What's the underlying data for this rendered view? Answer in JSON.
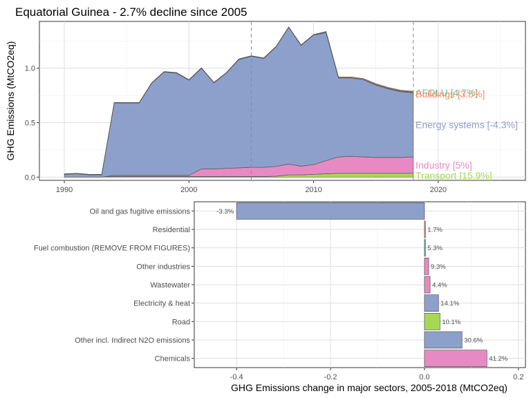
{
  "chart_data": [
    {
      "type": "area",
      "title": "Equatorial Guinea - 2.7% decline since 2005",
      "xlabel": "",
      "ylabel": "GHG Emissions (MtCO2eq)",
      "xlim": [
        1988,
        2027
      ],
      "ylim": [
        -0.03,
        1.43
      ],
      "x_ticks": [
        1990,
        2000,
        2010,
        2020
      ],
      "y_ticks": [
        0.0,
        0.5,
        1.0
      ],
      "y_tick_labels": [
        "0.0",
        "0.5",
        "1.0"
      ],
      "reference_lines_x": [
        2005,
        2018
      ],
      "grid": true,
      "x": [
        1990,
        1991,
        1992,
        1993,
        1994,
        1995,
        1996,
        1997,
        1998,
        1999,
        2000,
        2001,
        2002,
        2003,
        2004,
        2005,
        2006,
        2007,
        2008,
        2009,
        2010,
        2011,
        2012,
        2013,
        2014,
        2015,
        2016,
        2017,
        2018
      ],
      "series": [
        {
          "name": "Transport [15.9%]",
          "color": "#a6d854",
          "values": [
            0.0,
            0.0,
            0.0,
            0.0,
            0.005,
            0.005,
            0.005,
            0.005,
            0.005,
            0.005,
            0.005,
            0.005,
            0.005,
            0.005,
            0.005,
            0.005,
            0.005,
            0.008,
            0.02,
            0.02,
            0.025,
            0.03,
            0.035,
            0.035,
            0.035,
            0.035,
            0.035,
            0.035,
            0.035
          ]
        },
        {
          "name": "Industry [5%]",
          "color": "#e78ac3",
          "values": [
            0.0,
            0.0,
            0.0,
            0.0,
            0.01,
            0.01,
            0.01,
            0.01,
            0.01,
            0.01,
            0.01,
            0.07,
            0.07,
            0.075,
            0.08,
            0.085,
            0.085,
            0.09,
            0.1,
            0.08,
            0.09,
            0.12,
            0.15,
            0.155,
            0.15,
            0.145,
            0.145,
            0.145,
            0.15
          ]
        },
        {
          "name": "Energy systems [-4.3%]",
          "color": "#8da0cb",
          "values": [
            0.025,
            0.03,
            0.02,
            0.02,
            0.665,
            0.665,
            0.665,
            0.845,
            0.95,
            0.94,
            0.875,
            0.925,
            0.79,
            0.875,
            0.995,
            1.02,
            1.0,
            1.1,
            1.255,
            1.11,
            1.19,
            1.175,
            0.725,
            0.72,
            0.71,
            0.665,
            0.63,
            0.605,
            0.59
          ]
        },
        {
          "name": "AFOLU [4.7%]",
          "color": "#66c2a5",
          "values": [
            0.002,
            0.002,
            0.002,
            0.002,
            0.002,
            0.002,
            0.002,
            0.002,
            0.002,
            0.002,
            0.002,
            0.002,
            0.002,
            0.002,
            0.002,
            0.002,
            0.002,
            0.002,
            0.002,
            0.002,
            0.002,
            0.01,
            0.002,
            0.002,
            0.002,
            0.005,
            0.005,
            0.005,
            0.005
          ]
        },
        {
          "name": "Buildings [3.5%]",
          "color": "#fc8d62",
          "values": [
            0.003,
            0.003,
            0.003,
            0.003,
            0.003,
            0.003,
            0.003,
            0.003,
            0.003,
            0.003,
            0.003,
            0.003,
            0.003,
            0.003,
            0.003,
            0.003,
            0.003,
            0.003,
            0.003,
            0.003,
            0.003,
            0.003,
            0.008,
            0.008,
            0.008,
            0.008,
            0.008,
            0.008,
            0.008
          ]
        }
      ],
      "end_labels": [
        {
          "text": "AFOLU [4.7%]",
          "y": 0.775,
          "color": "#66c2a5"
        },
        {
          "text": "Buildings [3.5%]",
          "y": 0.765,
          "color": "#fc8d62"
        },
        {
          "text": "Energy systems [-4.3%]",
          "y": 0.48,
          "color": "#8da0cb"
        },
        {
          "text": "Industry [5%]",
          "y": 0.11,
          "color": "#e78ac3"
        },
        {
          "text": "Transport [15.9%]",
          "y": 0.015,
          "color": "#a6d854"
        }
      ]
    },
    {
      "type": "bar",
      "orientation": "horizontal",
      "xlabel": "GHG Emissions change in major sectors, 2005-2018 (MtCO2eq)",
      "ylabel": "",
      "xlim": [
        -0.49,
        0.215
      ],
      "x_ticks": [
        -0.4,
        -0.2,
        0.0,
        0.2
      ],
      "x_tick_labels": [
        "-0.4",
        "-0.2",
        "0.0",
        "0.2"
      ],
      "grid": true,
      "categories": [
        "Oil and gas fugitive emissions",
        "Residential",
        "Fuel combustion (REMOVE FROM FIGURES)",
        "Other industries",
        "Wastewater",
        "Electricity & heat",
        "Road",
        "Other incl. Indirect N2O emissions",
        "Chemicals"
      ],
      "values": [
        -0.4,
        0.002,
        0.002,
        0.009,
        0.012,
        0.03,
        0.033,
        0.08,
        0.133
      ],
      "labels": [
        "-3.3%",
        "1.7%",
        "5.3%",
        "9.3%",
        "4.4%",
        "14.1%",
        "10.1%",
        "30.6%",
        "41.2%"
      ],
      "colors": [
        "#8da0cb",
        "#fc8d62",
        "#66c2a5",
        "#e78ac3",
        "#e78ac3",
        "#8da0cb",
        "#a6d854",
        "#8da0cb",
        "#e78ac3"
      ]
    }
  ]
}
